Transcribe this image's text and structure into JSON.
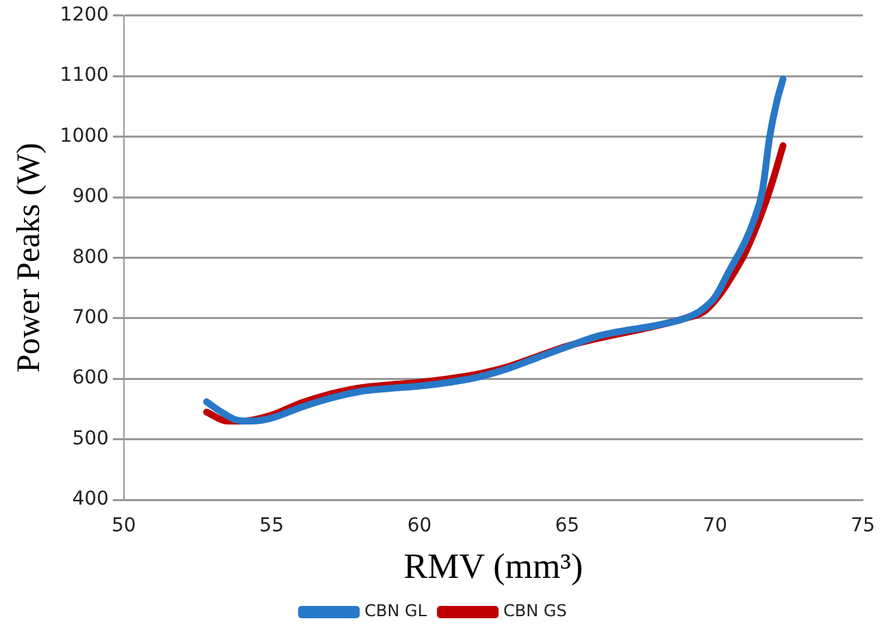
{
  "chart_data": {
    "type": "line",
    "xlabel": "RMV (mm³)",
    "ylabel": "Power Peaks (W)",
    "xlim": [
      50,
      75
    ],
    "xticks": [
      50,
      55,
      60,
      65,
      70,
      75
    ],
    "ylim": [
      400,
      1200
    ],
    "yticks": [
      400,
      500,
      600,
      700,
      800,
      900,
      1000,
      1100,
      1200
    ],
    "grid": "y",
    "legend": "bottom",
    "marker": "none",
    "line_style": "solid",
    "series": [
      {
        "name": "CBN GL",
        "color": "#2878c8",
        "x": [
          52.8,
          53.3,
          53.8,
          54.3,
          55,
          56,
          57,
          58,
          59,
          60,
          61,
          62,
          63,
          64,
          65,
          66,
          67,
          68,
          69,
          69.5,
          70,
          70.5,
          71,
          71.3,
          71.6,
          71.85,
          72.1,
          72.3
        ],
        "values": [
          562,
          545,
          532,
          530,
          535,
          553,
          568,
          579,
          584,
          588,
          594,
          603,
          617,
          635,
          653,
          670,
          680,
          688,
          700,
          712,
          735,
          780,
          825,
          860,
          910,
          1000,
          1060,
          1095
        ]
      },
      {
        "name": "CBN GS",
        "color": "#c00000",
        "x": [
          52.8,
          53.5,
          54,
          55,
          56,
          57,
          58,
          59,
          60,
          61,
          62,
          63,
          64,
          65,
          66,
          67,
          68,
          69,
          69.65,
          70.25,
          70.7,
          71,
          71.55,
          71.95,
          72.3
        ],
        "values": [
          545,
          530,
          530,
          540,
          560,
          575,
          585,
          590,
          594,
          600,
          608,
          620,
          637,
          654,
          null,
          null,
          null,
          700,
          712,
          745,
          780,
          806,
          870,
          927,
          985
        ]
      }
    ]
  }
}
